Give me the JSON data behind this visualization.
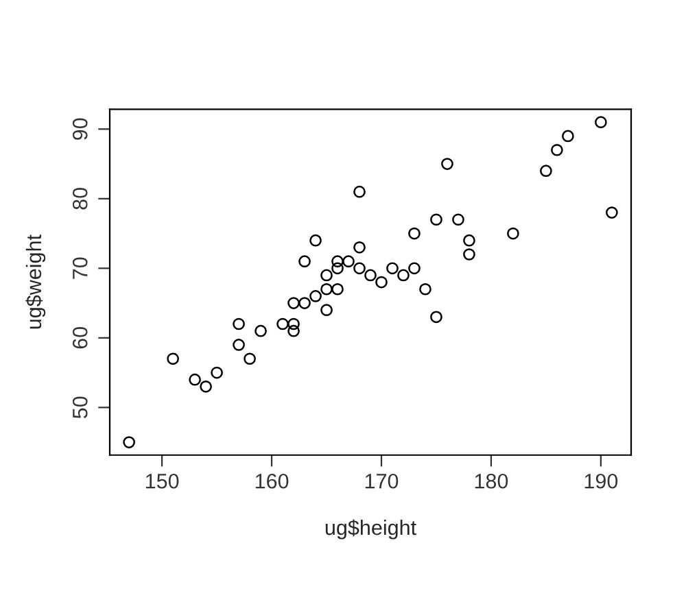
{
  "chart_data": {
    "type": "scatter",
    "xlabel": "ug$height",
    "ylabel": "ug$weight",
    "x": [
      147,
      151,
      153,
      154,
      155,
      157,
      157,
      158,
      159,
      161,
      162,
      162,
      162,
      163,
      163,
      164,
      164,
      165,
      165,
      165,
      166,
      166,
      166,
      167,
      168,
      168,
      168,
      169,
      170,
      171,
      172,
      173,
      173,
      174,
      175,
      175,
      176,
      177,
      178,
      178,
      182,
      185,
      186,
      187,
      190,
      191
    ],
    "values": [
      45,
      57,
      54,
      53,
      55,
      62,
      59,
      57,
      61,
      62,
      62,
      61,
      65,
      65,
      71,
      74,
      66,
      69,
      67,
      64,
      71,
      70,
      67,
      71,
      81,
      73,
      70,
      69,
      68,
      70,
      69,
      70,
      75,
      67,
      77,
      63,
      85,
      77,
      74,
      72,
      75,
      84,
      87,
      89,
      91,
      78
    ],
    "color": "#000000",
    "marker": "circle",
    "xlim": [
      145.24,
      192.76
    ],
    "ylim": [
      43.16,
      92.84
    ],
    "xticks": [
      150,
      160,
      170,
      180,
      190
    ],
    "yticks": [
      50,
      60,
      70,
      80,
      90
    ],
    "grid": false
  }
}
